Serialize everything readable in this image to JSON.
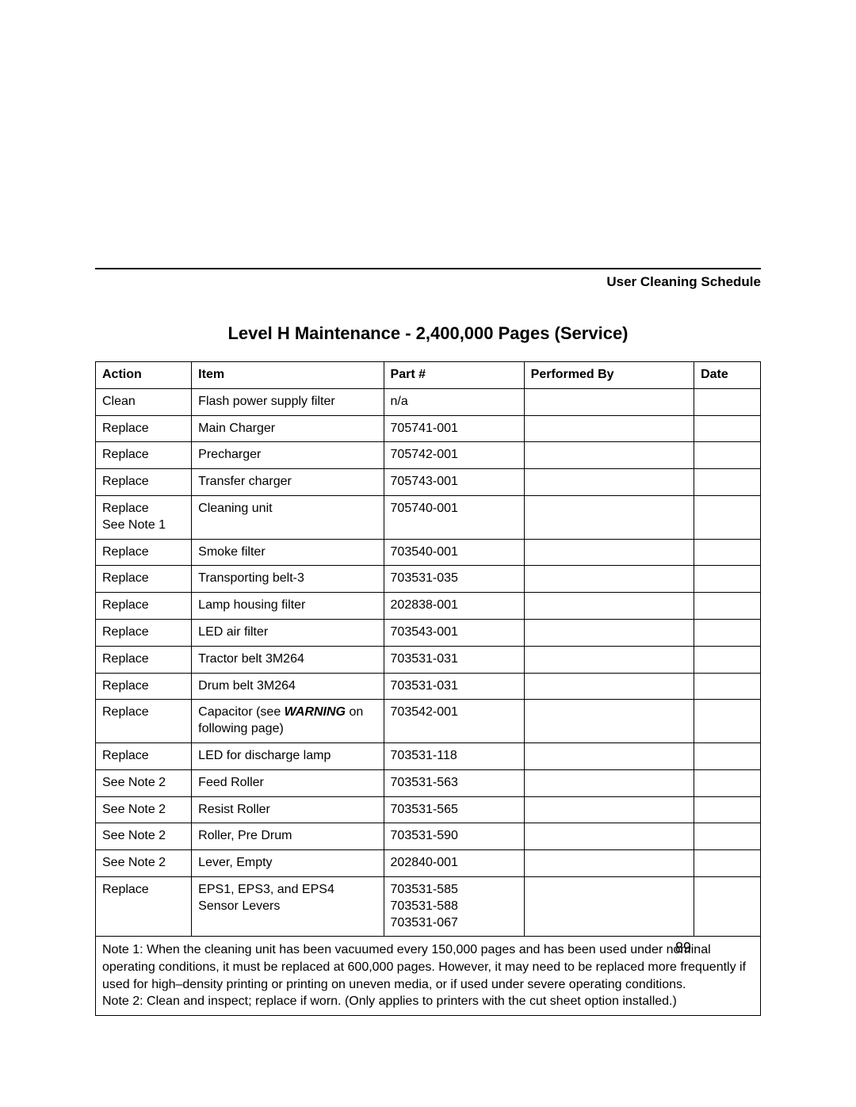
{
  "header": {
    "title": "User Cleaning Schedule"
  },
  "section": {
    "title": "Level H Maintenance - 2,400,000 Pages (Service)"
  },
  "table": {
    "columns": {
      "action": "Action",
      "item": "Item",
      "part": "Part #",
      "performed_by": "Performed By",
      "date": "Date"
    },
    "rows": [
      {
        "action": "Clean",
        "item": "Flash power supply filter",
        "part": "n/a",
        "performed_by": "",
        "date": ""
      },
      {
        "action": "Replace",
        "item": "Main Charger",
        "part": "705741-001",
        "performed_by": "",
        "date": ""
      },
      {
        "action": "Replace",
        "item": "Precharger",
        "part": "705742-001",
        "performed_by": "",
        "date": ""
      },
      {
        "action": "Replace",
        "item": "Transfer charger",
        "part": "705743-001",
        "performed_by": "",
        "date": ""
      },
      {
        "action": "Replace\nSee Note 1",
        "item": "Cleaning unit",
        "part": "705740-001",
        "performed_by": "",
        "date": ""
      },
      {
        "action": "Replace",
        "item": "Smoke filter",
        "part": "703540-001",
        "performed_by": "",
        "date": ""
      },
      {
        "action": "Replace",
        "item": "Transporting belt-3",
        "part": "703531-035",
        "performed_by": "",
        "date": ""
      },
      {
        "action": "Replace",
        "item": "Lamp housing filter",
        "part": "202838-001",
        "performed_by": "",
        "date": ""
      },
      {
        "action": "Replace",
        "item": "LED air filter",
        "part": "703543-001",
        "performed_by": "",
        "date": ""
      },
      {
        "action": "Replace",
        "item": "Tractor belt 3M264",
        "part": "703531-031",
        "performed_by": "",
        "date": ""
      },
      {
        "action": "Replace",
        "item": "Drum belt 3M264",
        "part": "703531-031",
        "performed_by": "",
        "date": ""
      },
      {
        "action": "Replace",
        "item_prefix": "Capacitor (see ",
        "item_warning": "WARNING",
        "item_suffix": " on following page)",
        "part": "703542-001",
        "performed_by": "",
        "date": ""
      },
      {
        "action": "Replace",
        "item": "LED for discharge lamp",
        "part": "703531-118",
        "performed_by": "",
        "date": ""
      },
      {
        "action": "See Note 2",
        "item": "Feed Roller",
        "part": "703531-563",
        "performed_by": "",
        "date": ""
      },
      {
        "action": "See Note 2",
        "item": "Resist Roller",
        "part": "703531-565",
        "performed_by": "",
        "date": ""
      },
      {
        "action": "See Note 2",
        "item": "Roller, Pre Drum",
        "part": "703531-590",
        "performed_by": "",
        "date": ""
      },
      {
        "action": "See Note 2",
        "item": "Lever, Empty",
        "part": "202840-001",
        "performed_by": "",
        "date": ""
      },
      {
        "action": "Replace",
        "item": "EPS1, EPS3, and EPS4 Sensor Levers",
        "part": "703531-585\n703531-588\n703531-067",
        "performed_by": "",
        "date": ""
      }
    ],
    "notes": "Note 1: When the cleaning unit has been vacuumed every 150,000 pages and has been used under nominal operating conditions, it must be replaced at 600,000 pages. However, it may need to be replaced more frequently if used for high–density printing or printing on uneven media, or if used under severe operating conditions.\nNote 2: Clean and inspect; replace if worn. (Only applies to printers with the cut sheet option installed.)"
  },
  "page_number": "89"
}
